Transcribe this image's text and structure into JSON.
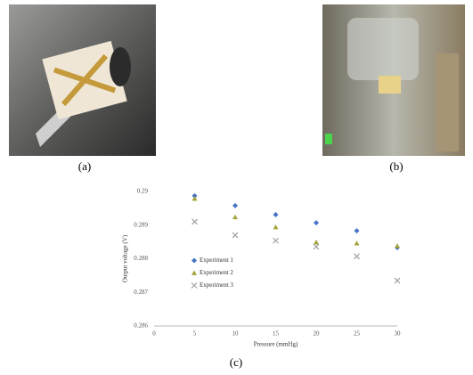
{
  "figure": {
    "captions": [
      "(a)",
      "(b)",
      "(c)"
    ]
  },
  "chart_data": {
    "type": "scatter",
    "xlabel": "Pressure (mmHg)",
    "ylabel": "Output voltage (V)",
    "x": [
      5,
      10,
      15,
      20,
      25,
      30
    ],
    "series": [
      {
        "name": "Experiment 1",
        "color": "#4472c4",
        "marker": "diamond",
        "values": [
          0.28987,
          0.28958,
          0.28931,
          0.28907,
          0.28883,
          0.28833
        ]
      },
      {
        "name": "Experiment 2",
        "color": "#a3a33c",
        "marker": "triangle",
        "values": [
          0.28979,
          0.28924,
          0.28894,
          0.28849,
          0.28846,
          0.28838
        ]
      },
      {
        "name": "Experiment 3",
        "color": "#a0a0a0",
        "marker": "x",
        "values": [
          0.2891,
          0.2887,
          0.28854,
          0.28836,
          0.28807,
          0.28735
        ]
      }
    ],
    "xlim": [
      0,
      30
    ],
    "xticks": [
      0,
      5,
      10,
      15,
      20,
      25,
      30
    ],
    "ylim": [
      0.286,
      0.29
    ],
    "yticks": [
      0.286,
      0.287,
      0.288,
      0.289,
      0.29
    ],
    "legend": "center-left"
  }
}
